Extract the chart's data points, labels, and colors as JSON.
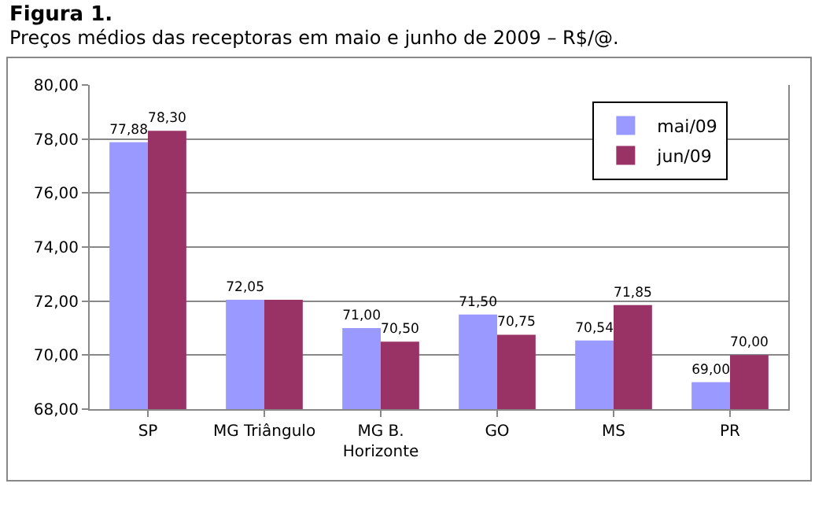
{
  "chart_data": {
    "type": "bar",
    "title": "Figura 1.",
    "subtitle": "Preços médios das receptoras em maio e junho de 2009 – R$/@.",
    "categories": [
      "SP",
      "MG Triângulo",
      "MG B.\nHorizonte",
      "GO",
      "MS",
      "PR"
    ],
    "series": [
      {
        "name": "mai/09",
        "color": "#9999ff",
        "values": [
          77.88,
          72.05,
          71.0,
          71.5,
          70.54,
          69.0
        ],
        "value_labels": [
          "77,88",
          "72,05",
          "71,00",
          "71,50",
          "70,54",
          "69,00"
        ]
      },
      {
        "name": "jun/09",
        "color": "#993366",
        "values": [
          78.3,
          72.05,
          70.5,
          70.75,
          71.85,
          70.0
        ],
        "value_labels": [
          "78,30",
          null,
          "70,50",
          "70,75",
          "71,85",
          "70,00"
        ]
      }
    ],
    "ylim": [
      68,
      80
    ],
    "yticks": [
      {
        "value": 68,
        "label": "68,00"
      },
      {
        "value": 70,
        "label": "70,00"
      },
      {
        "value": 72,
        "label": "72,00"
      },
      {
        "value": 74,
        "label": "74,00"
      },
      {
        "value": 76,
        "label": "76,00"
      },
      {
        "value": 78,
        "label": "78,00"
      },
      {
        "value": 80,
        "label": "80,00"
      }
    ],
    "grid": "y",
    "legend": "top right"
  }
}
